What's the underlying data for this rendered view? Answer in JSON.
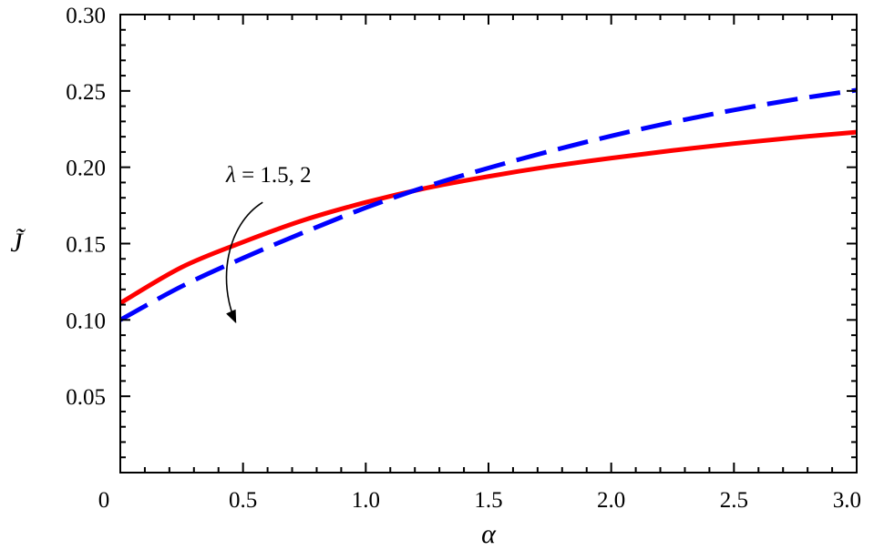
{
  "chart_data": {
    "type": "line",
    "xlabel": "α",
    "ylabel": "J̃",
    "xlim": [
      0,
      3.0
    ],
    "ylim": [
      0,
      0.3
    ],
    "xticks": [
      0,
      0.5,
      1.0,
      1.5,
      2.0,
      2.5,
      3.0
    ],
    "xtick_labels": [
      "0",
      "0.5",
      "1.0",
      "1.5",
      "2.0",
      "2.5",
      "3.0"
    ],
    "yticks": [
      0.05,
      0.1,
      0.15,
      0.2,
      0.25,
      0.3
    ],
    "ytick_labels": [
      "0.05",
      "0.10",
      "0.15",
      "0.20",
      "0.25",
      "0.30"
    ],
    "grid": false,
    "annotation": {
      "symbol": "λ",
      "text": " = 1.5, 2",
      "arrow_from": [
        0.58,
        0.177
      ],
      "arrow_to": [
        0.47,
        0.0985
      ]
    },
    "series": [
      {
        "style": "solid",
        "color": "#ff0000",
        "x": [
          0,
          0.25,
          0.5,
          0.75,
          1.0,
          1.25,
          1.5,
          1.75,
          2.0,
          2.25,
          2.5,
          2.75,
          3.0
        ],
        "y": [
          0.111,
          0.1345,
          0.151,
          0.1655,
          0.177,
          0.1865,
          0.194,
          0.2005,
          0.206,
          0.211,
          0.2155,
          0.2195,
          0.223
        ]
      },
      {
        "style": "dashed",
        "color": "#0000ff",
        "x": [
          0,
          0.25,
          0.5,
          0.75,
          1.0,
          1.25,
          1.5,
          1.75,
          2.0,
          2.25,
          2.5,
          2.75,
          3.0
        ],
        "y": [
          0.1,
          0.122,
          0.1405,
          0.1575,
          0.1735,
          0.1875,
          0.1995,
          0.2105,
          0.2205,
          0.2295,
          0.2375,
          0.2445,
          0.2505
        ]
      }
    ]
  }
}
